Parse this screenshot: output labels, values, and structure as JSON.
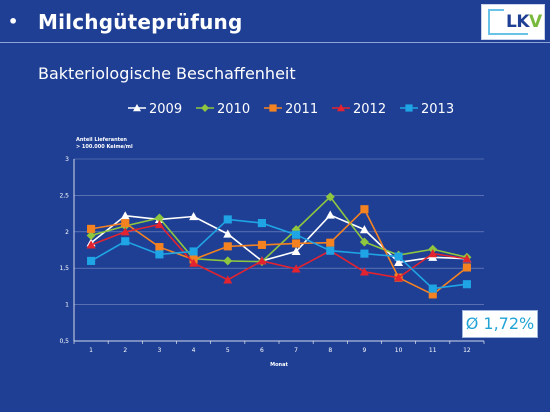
{
  "slide": {
    "bullet": "•",
    "title": "Milchgüteprüfung",
    "subtitle": "Bakteriologische Beschaffenheit",
    "logo_text": "LKV",
    "average_label": "Ø 1,72%"
  },
  "colors": {
    "background": "#1f3f94",
    "2009": "#ffffff",
    "2010": "#8fc63f",
    "2011": "#f58220",
    "2012": "#e3232f",
    "2013": "#1fa5e5"
  },
  "chart_data": {
    "type": "line",
    "ylabel_line1": "Anteil Lieferanten",
    "ylabel_line2": "> 100.000 Keime/ml",
    "xlabel": "Monat",
    "x": [
      1,
      2,
      3,
      4,
      5,
      6,
      7,
      8,
      9,
      10,
      11,
      12
    ],
    "ylim": [
      0.5,
      3
    ],
    "yticks": [
      "0,5",
      "1",
      "1,5",
      "2",
      "2,5",
      "3"
    ],
    "ytick_values": [
      0.5,
      1,
      1.5,
      2,
      2.5,
      3
    ],
    "grid": true,
    "legend": "top",
    "series": [
      {
        "name": "2009",
        "marker": "triangle",
        "color": "#ffffff",
        "values": [
          1.85,
          2.22,
          2.17,
          2.21,
          1.97,
          1.6,
          1.73,
          2.23,
          2.03,
          1.58,
          1.65,
          1.63
        ]
      },
      {
        "name": "2010",
        "marker": "diamond",
        "color": "#8fc63f",
        "values": [
          1.95,
          2.08,
          2.19,
          1.63,
          1.6,
          1.59,
          2.03,
          2.48,
          1.86,
          1.68,
          1.76,
          1.65
        ]
      },
      {
        "name": "2011",
        "marker": "square",
        "color": "#f58220",
        "values": [
          2.04,
          2.12,
          1.79,
          1.62,
          1.8,
          1.82,
          1.84,
          1.85,
          2.31,
          1.37,
          1.14,
          1.51
        ]
      },
      {
        "name": "2012",
        "marker": "triangle",
        "color": "#e3232f",
        "values": [
          1.82,
          2.0,
          2.1,
          1.57,
          1.34,
          1.6,
          1.49,
          1.74,
          1.45,
          1.37,
          1.7,
          1.63
        ]
      },
      {
        "name": "2013",
        "marker": "square",
        "color": "#1fa5e5",
        "values": [
          1.6,
          1.87,
          1.69,
          1.73,
          2.17,
          2.12,
          1.96,
          1.74,
          1.7,
          1.66,
          1.22,
          1.28
        ]
      }
    ]
  }
}
